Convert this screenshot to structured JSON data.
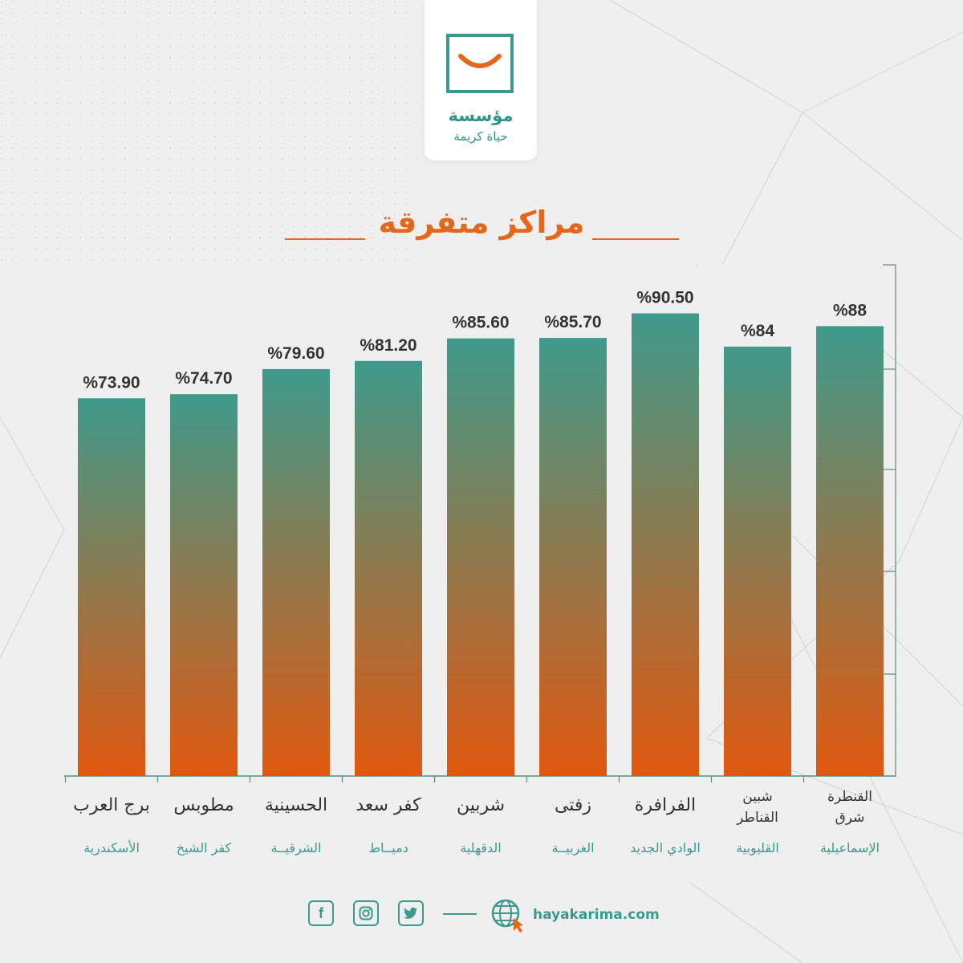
{
  "logo": {
    "line1": "مؤسسة",
    "line2": "حياة كريمة"
  },
  "title": "مراكز متفرقة",
  "chart_data": {
    "type": "bar",
    "direction": "rtl",
    "categories": [
      "القنطرة شرق",
      "شبين القناطر",
      "الفرافرة",
      "زفتى",
      "شربين",
      "كفر سعد",
      "الحسينية",
      "مطوبس",
      "برج العرب"
    ],
    "category_lines": [
      [
        "القنطرة",
        "شرق"
      ],
      [
        "شبين",
        "القناطر"
      ],
      [
        "الفرافرة"
      ],
      [
        "زفتى"
      ],
      [
        "شربين"
      ],
      [
        "كفر سعد"
      ],
      [
        "الحسينية"
      ],
      [
        "مطوبس"
      ],
      [
        "برج العرب"
      ]
    ],
    "subcategories": [
      "الإسماعيلية",
      "القليوبية",
      "الوادي الجديد",
      "الغربيــة",
      "الدقهلية",
      "دميــاط",
      "الشرقيــة",
      "كفر الشيخ",
      "الأسكندرية"
    ],
    "values": [
      88,
      84,
      90.5,
      85.7,
      85.6,
      81.2,
      79.6,
      74.7,
      73.9
    ],
    "labels": [
      "%88",
      "%84",
      "%90.50",
      "%85.70",
      "%85.60",
      "%81.20",
      "%79.60",
      "%74.70",
      "%73.90"
    ],
    "ylim": [
      0,
      100
    ],
    "colors": {
      "top": "#3f9a8b",
      "bottom": "#e0580f"
    }
  },
  "footer": {
    "icons": [
      "facebook-icon",
      "instagram-icon",
      "twitter-icon",
      "globe-icon"
    ],
    "website": "hayakarima.com"
  }
}
